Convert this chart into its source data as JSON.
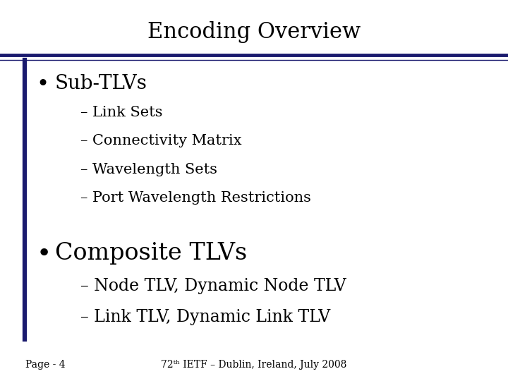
{
  "title": "Encoding Overview",
  "title_fontsize": 22,
  "title_color": "#000000",
  "background_color": "#ffffff",
  "border_line_color": "#1a1a6e",
  "left_bar_color": "#1a1a6e",
  "bullet1": "Sub-TLVs",
  "bullet1_fontsize": 20,
  "sub_items1": [
    "– Link Sets",
    "– Connectivity Matrix",
    "– Wavelength Sets",
    "– Port Wavelength Restrictions"
  ],
  "sub_fontsize": 15,
  "bullet2": "Composite TLVs",
  "bullet2_fontsize": 24,
  "sub_items2": [
    "– Node TLV, Dynamic Node TLV",
    "– Link TLV, Dynamic Link TLV"
  ],
  "sub2_fontsize": 17,
  "footer_left": "Page - 4",
  "footer_center": "72ᵗʰ IETF – Dublin, Ireland, July 2008",
  "footer_fontsize": 10,
  "footer_color": "#000000",
  "text_color": "#000000"
}
